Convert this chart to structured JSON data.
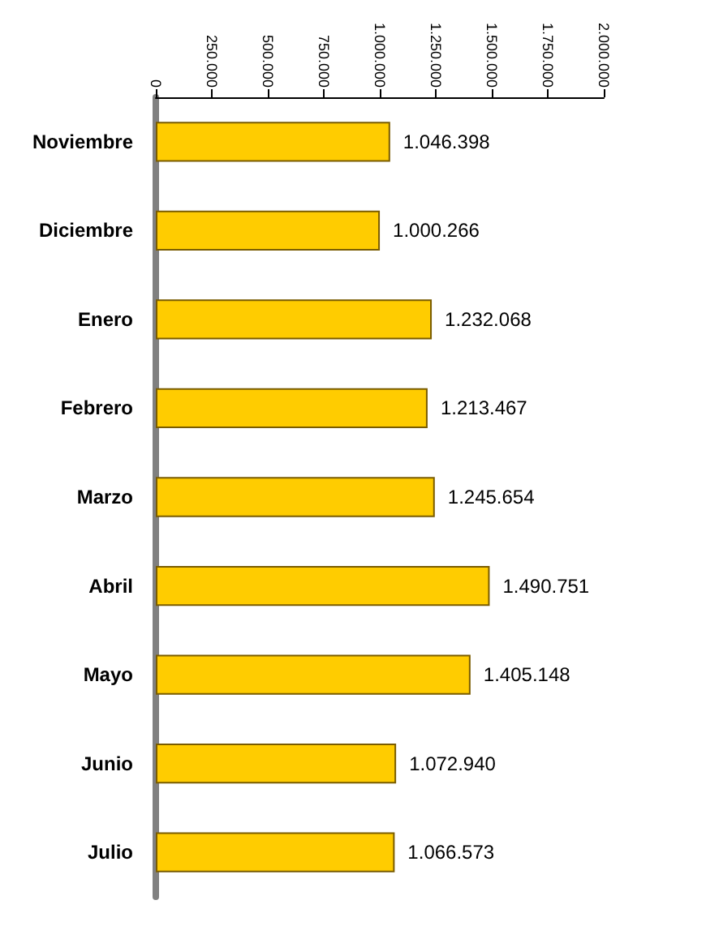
{
  "chart_data": {
    "type": "bar",
    "orientation": "horizontal",
    "categories": [
      "Noviembre",
      "Diciembre",
      "Enero",
      "Febrero",
      "Marzo",
      "Abril",
      "Mayo",
      "Junio",
      "Julio"
    ],
    "values": [
      1046398,
      1000266,
      1232068,
      1213467,
      1245654,
      1490751,
      1405148,
      1072940,
      1066573
    ],
    "value_labels": [
      "1.046.398",
      "1.000.266",
      "1.232.068",
      "1.213.467",
      "1.245.654",
      "1.490.751",
      "1.405.148",
      "1.072.940",
      "1.066.573"
    ],
    "color": "#ffcc00",
    "xlim": [
      0,
      2000000
    ],
    "xticks": [
      0,
      {
        "value": 250000,
        "label": "250.000"
      },
      {
        "value": 500000,
        "label": "500.000"
      },
      {
        "value": 750000,
        "label": "750.000"
      },
      {
        "value": 1000000,
        "label": "1.000.000"
      },
      {
        "value": 1250000,
        "label": "1.250.000"
      },
      {
        "value": 1500000,
        "label": "1.500.000"
      },
      {
        "value": 1750000,
        "label": "1.750.000"
      },
      {
        "value": 2000000,
        "label": "2.000.000"
      }
    ],
    "grid": false
  }
}
